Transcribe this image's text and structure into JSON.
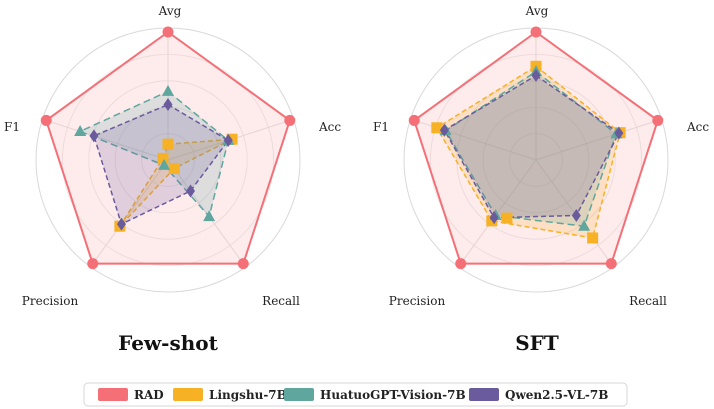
{
  "chart_data": [
    {
      "type": "radar",
      "title": "Few-shot",
      "axes": [
        "Avg",
        "Acc",
        "Recall",
        "Precision",
        "F1"
      ],
      "rlim": [
        0,
        1
      ],
      "grid": true,
      "series": [
        {
          "name": "RAD",
          "color": "#f46f76",
          "values": [
            0.97,
            0.97,
            0.97,
            0.97,
            0.97
          ]
        },
        {
          "name": "Lingshu-7B",
          "color": "#f7b125",
          "values": [
            0.12,
            0.51,
            0.08,
            0.62,
            0.04
          ]
        },
        {
          "name": "HuatuoGPT-Vision-7B",
          "color": "#5fa79e",
          "values": [
            0.52,
            0.48,
            0.53,
            0.05,
            0.7
          ]
        },
        {
          "name": "Qwen2.5-VL-7B",
          "color": "#6a5b9d",
          "values": [
            0.42,
            0.48,
            0.29,
            0.6,
            0.59
          ]
        }
      ]
    },
    {
      "type": "radar",
      "title": "SFT",
      "axes": [
        "Avg",
        "Acc",
        "Recall",
        "Precision",
        "F1"
      ],
      "rlim": [
        0,
        1
      ],
      "grid": true,
      "series": [
        {
          "name": "RAD",
          "color": "#f46f76",
          "values": [
            0.97,
            0.97,
            0.97,
            0.97,
            0.97
          ]
        },
        {
          "name": "Lingshu-7B",
          "color": "#f7b125",
          "values": [
            0.71,
            0.67,
            0.73,
            0.57,
            0.79
          ]
        },
        {
          "name": "HuatuoGPT-Vision-7B",
          "color": "#5fa79e",
          "values": [
            0.67,
            0.64,
            0.62,
            0.52,
            0.72
          ]
        },
        {
          "name": "Qwen2.5-VL-7B",
          "color": "#6a5b9d",
          "values": [
            0.64,
            0.66,
            0.52,
            0.54,
            0.73
          ]
        }
      ],
      "extra_points": [
        {
          "series": "Lingshu-7B",
          "x": -0.22,
          "y": -0.44
        }
      ]
    }
  ],
  "legend": [
    {
      "label": "RAD",
      "color": "#f46f76"
    },
    {
      "label": "Lingshu-7B",
      "color": "#f7b125"
    },
    {
      "label": "HuatuoGPT-Vision-7B",
      "color": "#5fa79e"
    },
    {
      "label": "Qwen2.5-VL-7B",
      "color": "#6a5b9d"
    }
  ]
}
